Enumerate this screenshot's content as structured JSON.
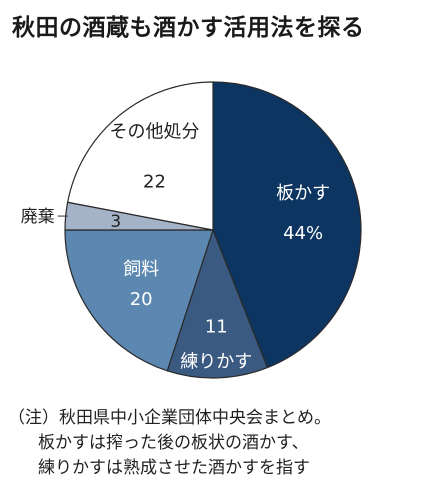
{
  "chart_data": {
    "type": "pie",
    "title": "秋田の酒蔵も酒かす活用法を探る",
    "unit": "%",
    "slices": [
      {
        "label": "板かす",
        "value": 44,
        "value_text": "44%",
        "color": "#0d3561",
        "text_color": "#ffffff"
      },
      {
        "label": "練りかす",
        "value": 11,
        "value_text": "11",
        "color": "#3b5a82",
        "text_color": "#ffffff"
      },
      {
        "label": "飼料",
        "value": 20,
        "value_text": "20",
        "color": "#5b87b0",
        "text_color": "#ffffff"
      },
      {
        "label": "廃棄",
        "value": 3,
        "value_text": "3",
        "color": "#a5b3c9",
        "text_color": "#222222"
      },
      {
        "label": "その他処分",
        "value": 22,
        "value_text": "22",
        "color": "#ffffff",
        "text_color": "#222222"
      }
    ],
    "start": "top",
    "direction": "clockwise"
  },
  "note": {
    "lines": [
      "（注）秋田県中小企業団体中央会まとめ。",
      "板かすは搾った後の板状の酒かす、",
      "練りかすは熟成させた酒かすを指す"
    ]
  }
}
